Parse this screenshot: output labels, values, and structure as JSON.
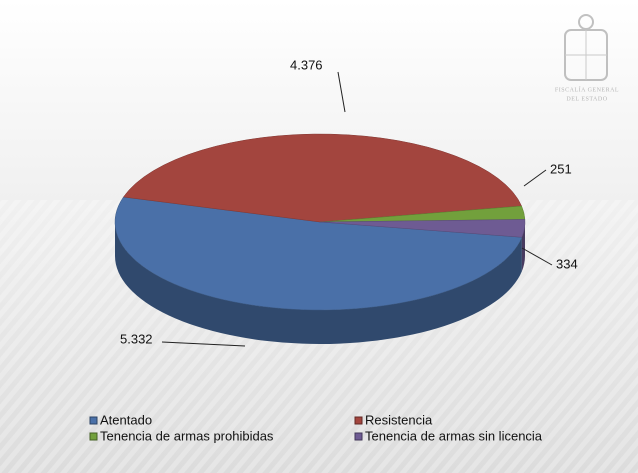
{
  "chart_data": {
    "type": "pie3d",
    "categories": [
      "Atentado",
      "Resistencia",
      "Tenencia de armas prohibidas",
      "Tenencia de armas sin licencia"
    ],
    "values": [
      5332,
      4376,
      251,
      334
    ],
    "value_labels": [
      "5.332",
      "4.376",
      "251",
      "334"
    ],
    "colors": [
      "#4a70a8",
      "#a3453e",
      "#72a03c",
      "#6e5b93"
    ],
    "legend": "bottom"
  },
  "branding": {
    "lines": [
      "FISCALÍA GENERAL",
      "DEL ESTADO"
    ]
  }
}
